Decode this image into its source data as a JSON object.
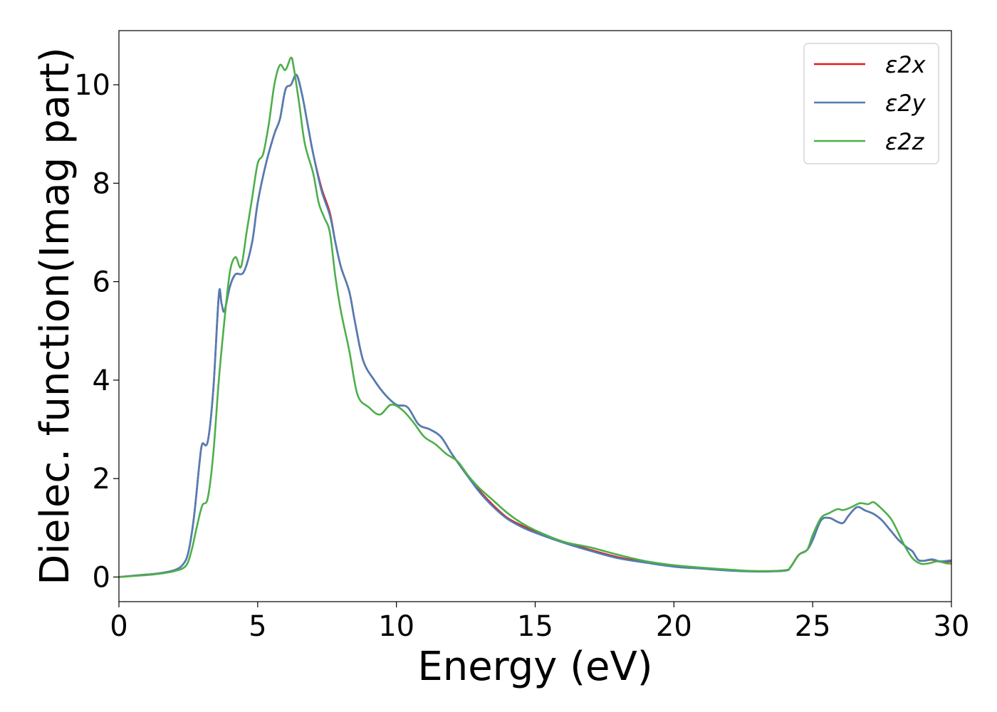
{
  "chart_data": {
    "type": "line",
    "title": "",
    "xlabel": "Energy (eV)",
    "ylabel": "Dielec. function(Imag part)",
    "xlim": [
      0,
      30
    ],
    "ylim": [
      -0.5,
      11.1
    ],
    "xticks": [
      0,
      5,
      10,
      15,
      20,
      25,
      30
    ],
    "yticks": [
      0,
      2,
      4,
      6,
      8,
      10
    ],
    "grid": false,
    "legend_position": "top-right",
    "series": [
      {
        "name": "ε2x",
        "color": "#e41a1c",
        "points": [
          [
            0,
            0
          ],
          [
            1,
            0.05
          ],
          [
            1.5,
            0.08
          ],
          [
            2,
            0.14
          ],
          [
            2.3,
            0.25
          ],
          [
            2.5,
            0.5
          ],
          [
            2.7,
            1.2
          ],
          [
            2.9,
            2.3
          ],
          [
            3.0,
            2.7
          ],
          [
            3.2,
            2.75
          ],
          [
            3.4,
            3.8
          ],
          [
            3.6,
            5.7
          ],
          [
            3.7,
            5.55
          ],
          [
            3.8,
            5.4
          ],
          [
            4.0,
            5.9
          ],
          [
            4.2,
            6.15
          ],
          [
            4.5,
            6.2
          ],
          [
            4.8,
            6.8
          ],
          [
            5.0,
            7.6
          ],
          [
            5.3,
            8.4
          ],
          [
            5.6,
            9.0
          ],
          [
            5.8,
            9.3
          ],
          [
            6.0,
            9.9
          ],
          [
            6.2,
            10.0
          ],
          [
            6.4,
            10.2
          ],
          [
            6.6,
            9.8
          ],
          [
            6.8,
            9.2
          ],
          [
            7.0,
            8.6
          ],
          [
            7.3,
            7.9
          ],
          [
            7.6,
            7.4
          ],
          [
            7.8,
            6.8
          ],
          [
            8.0,
            6.3
          ],
          [
            8.3,
            5.8
          ],
          [
            8.5,
            5.2
          ],
          [
            8.8,
            4.4
          ],
          [
            9.2,
            4.0
          ],
          [
            9.6,
            3.7
          ],
          [
            10.0,
            3.5
          ],
          [
            10.4,
            3.45
          ],
          [
            10.8,
            3.1
          ],
          [
            11.2,
            3.0
          ],
          [
            11.6,
            2.85
          ],
          [
            12.0,
            2.5
          ],
          [
            12.5,
            2.1
          ],
          [
            13.0,
            1.75
          ],
          [
            13.5,
            1.45
          ],
          [
            14.0,
            1.2
          ],
          [
            14.5,
            1.05
          ],
          [
            15.0,
            0.92
          ],
          [
            16.0,
            0.72
          ],
          [
            17.0,
            0.55
          ],
          [
            18.0,
            0.4
          ],
          [
            19.0,
            0.3
          ],
          [
            20.0,
            0.22
          ],
          [
            21.0,
            0.18
          ],
          [
            22.0,
            0.14
          ],
          [
            23.0,
            0.12
          ],
          [
            24.0,
            0.13
          ],
          [
            24.2,
            0.2
          ],
          [
            24.5,
            0.45
          ],
          [
            24.8,
            0.55
          ],
          [
            25.0,
            0.75
          ],
          [
            25.3,
            1.15
          ],
          [
            25.6,
            1.2
          ],
          [
            25.9,
            1.12
          ],
          [
            26.1,
            1.1
          ],
          [
            26.3,
            1.25
          ],
          [
            26.6,
            1.42
          ],
          [
            26.9,
            1.35
          ],
          [
            27.2,
            1.28
          ],
          [
            27.5,
            1.15
          ],
          [
            27.8,
            0.95
          ],
          [
            28.1,
            0.75
          ],
          [
            28.4,
            0.6
          ],
          [
            28.6,
            0.52
          ],
          [
            28.8,
            0.35
          ],
          [
            29.0,
            0.33
          ],
          [
            29.3,
            0.35
          ],
          [
            29.6,
            0.31
          ],
          [
            30.0,
            0.32
          ]
        ]
      },
      {
        "name": "ε2y",
        "color": "#4f7eb6",
        "points": [
          [
            0,
            0
          ],
          [
            1,
            0.05
          ],
          [
            1.5,
            0.08
          ],
          [
            2,
            0.14
          ],
          [
            2.3,
            0.25
          ],
          [
            2.5,
            0.5
          ],
          [
            2.7,
            1.2
          ],
          [
            2.9,
            2.3
          ],
          [
            3.0,
            2.7
          ],
          [
            3.2,
            2.75
          ],
          [
            3.4,
            3.8
          ],
          [
            3.6,
            5.75
          ],
          [
            3.7,
            5.55
          ],
          [
            3.8,
            5.4
          ],
          [
            4.0,
            5.9
          ],
          [
            4.2,
            6.15
          ],
          [
            4.5,
            6.2
          ],
          [
            4.8,
            6.8
          ],
          [
            5.0,
            7.6
          ],
          [
            5.3,
            8.4
          ],
          [
            5.6,
            9.0
          ],
          [
            5.8,
            9.3
          ],
          [
            6.0,
            9.9
          ],
          [
            6.2,
            10.0
          ],
          [
            6.4,
            10.2
          ],
          [
            6.6,
            9.8
          ],
          [
            6.8,
            9.2
          ],
          [
            7.0,
            8.6
          ],
          [
            7.3,
            7.85
          ],
          [
            7.6,
            7.35
          ],
          [
            7.8,
            6.8
          ],
          [
            8.0,
            6.3
          ],
          [
            8.3,
            5.8
          ],
          [
            8.5,
            5.2
          ],
          [
            8.8,
            4.4
          ],
          [
            9.2,
            4.0
          ],
          [
            9.6,
            3.7
          ],
          [
            10.0,
            3.5
          ],
          [
            10.4,
            3.45
          ],
          [
            10.8,
            3.1
          ],
          [
            11.2,
            3.0
          ],
          [
            11.6,
            2.85
          ],
          [
            12.0,
            2.5
          ],
          [
            12.5,
            2.1
          ],
          [
            13.0,
            1.72
          ],
          [
            13.5,
            1.42
          ],
          [
            14.0,
            1.18
          ],
          [
            14.5,
            1.02
          ],
          [
            15.0,
            0.9
          ],
          [
            16.0,
            0.7
          ],
          [
            17.0,
            0.53
          ],
          [
            18.0,
            0.38
          ],
          [
            19.0,
            0.29
          ],
          [
            20.0,
            0.21
          ],
          [
            21.0,
            0.17
          ],
          [
            22.0,
            0.13
          ],
          [
            23.0,
            0.11
          ],
          [
            24.0,
            0.13
          ],
          [
            24.2,
            0.2
          ],
          [
            24.5,
            0.45
          ],
          [
            24.8,
            0.55
          ],
          [
            25.0,
            0.75
          ],
          [
            25.3,
            1.15
          ],
          [
            25.6,
            1.2
          ],
          [
            25.9,
            1.12
          ],
          [
            26.1,
            1.1
          ],
          [
            26.3,
            1.25
          ],
          [
            26.6,
            1.42
          ],
          [
            26.9,
            1.35
          ],
          [
            27.2,
            1.28
          ],
          [
            27.5,
            1.15
          ],
          [
            27.8,
            0.95
          ],
          [
            28.1,
            0.75
          ],
          [
            28.4,
            0.6
          ],
          [
            28.6,
            0.52
          ],
          [
            28.8,
            0.35
          ],
          [
            29.0,
            0.33
          ],
          [
            29.3,
            0.36
          ],
          [
            29.6,
            0.32
          ],
          [
            30.0,
            0.34
          ]
        ]
      },
      {
        "name": "ε2z",
        "color": "#4daf4a",
        "points": [
          [
            0,
            0
          ],
          [
            1,
            0.04
          ],
          [
            1.5,
            0.07
          ],
          [
            2,
            0.12
          ],
          [
            2.4,
            0.22
          ],
          [
            2.6,
            0.5
          ],
          [
            2.8,
            1.0
          ],
          [
            3.0,
            1.45
          ],
          [
            3.2,
            1.6
          ],
          [
            3.4,
            2.5
          ],
          [
            3.6,
            4.0
          ],
          [
            3.8,
            5.2
          ],
          [
            4.0,
            6.2
          ],
          [
            4.2,
            6.5
          ],
          [
            4.4,
            6.3
          ],
          [
            4.6,
            7.0
          ],
          [
            4.8,
            7.7
          ],
          [
            5.0,
            8.4
          ],
          [
            5.2,
            8.6
          ],
          [
            5.4,
            9.2
          ],
          [
            5.6,
            10.0
          ],
          [
            5.8,
            10.4
          ],
          [
            6.0,
            10.3
          ],
          [
            6.2,
            10.55
          ],
          [
            6.3,
            10.35
          ],
          [
            6.5,
            9.6
          ],
          [
            6.7,
            8.8
          ],
          [
            7.0,
            8.2
          ],
          [
            7.2,
            7.6
          ],
          [
            7.4,
            7.3
          ],
          [
            7.6,
            7.0
          ],
          [
            7.8,
            6.1
          ],
          [
            8.0,
            5.4
          ],
          [
            8.3,
            4.6
          ],
          [
            8.6,
            3.7
          ],
          [
            9.0,
            3.45
          ],
          [
            9.4,
            3.3
          ],
          [
            9.8,
            3.5
          ],
          [
            10.2,
            3.4
          ],
          [
            10.6,
            3.15
          ],
          [
            11.0,
            2.85
          ],
          [
            11.4,
            2.7
          ],
          [
            11.8,
            2.5
          ],
          [
            12.2,
            2.35
          ],
          [
            12.6,
            2.05
          ],
          [
            13.0,
            1.8
          ],
          [
            13.5,
            1.55
          ],
          [
            14.0,
            1.3
          ],
          [
            14.5,
            1.1
          ],
          [
            15.0,
            0.95
          ],
          [
            16.0,
            0.72
          ],
          [
            17.0,
            0.6
          ],
          [
            18.0,
            0.45
          ],
          [
            19.0,
            0.32
          ],
          [
            20.0,
            0.24
          ],
          [
            21.0,
            0.19
          ],
          [
            22.0,
            0.15
          ],
          [
            23.0,
            0.12
          ],
          [
            24.0,
            0.14
          ],
          [
            24.2,
            0.2
          ],
          [
            24.5,
            0.45
          ],
          [
            24.8,
            0.55
          ],
          [
            25.0,
            0.85
          ],
          [
            25.3,
            1.2
          ],
          [
            25.6,
            1.3
          ],
          [
            25.9,
            1.38
          ],
          [
            26.1,
            1.36
          ],
          [
            26.4,
            1.42
          ],
          [
            26.7,
            1.5
          ],
          [
            27.0,
            1.48
          ],
          [
            27.2,
            1.52
          ],
          [
            27.5,
            1.38
          ],
          [
            27.8,
            1.2
          ],
          [
            28.0,
            1.0
          ],
          [
            28.3,
            0.65
          ],
          [
            28.6,
            0.38
          ],
          [
            28.9,
            0.27
          ],
          [
            29.2,
            0.28
          ],
          [
            29.5,
            0.32
          ],
          [
            29.8,
            0.28
          ],
          [
            30.0,
            0.27
          ]
        ]
      }
    ]
  }
}
